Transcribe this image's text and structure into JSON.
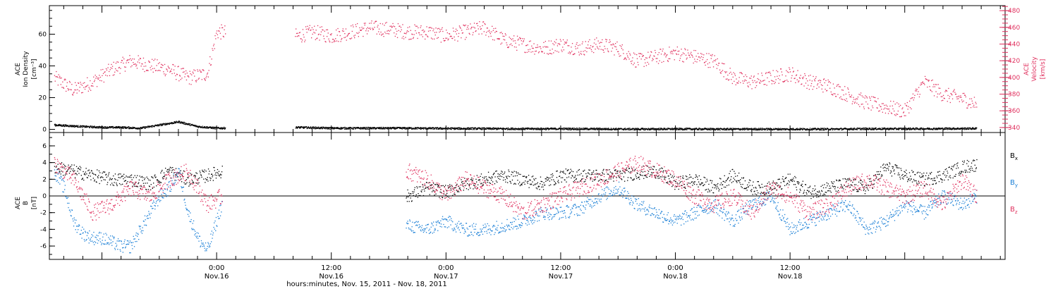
{
  "colors": {
    "density": "#000000",
    "velocity": "#e0305e",
    "bx": "#000000",
    "by": "#1a7fd6",
    "bz": "#e0305e",
    "frame": "#000000"
  },
  "chart_data": [
    {
      "type": "scatter",
      "panel": "top",
      "left_axis": {
        "label_lines": [
          "ACE",
          "Ion Density",
          "[cm⁻³]"
        ],
        "ylim": [
          -2,
          78
        ],
        "ticks": [
          "0",
          "20",
          "40",
          "60"
        ]
      },
      "right_axis": {
        "label_lines": [
          "ACE",
          "Velocity",
          "[km/s]"
        ],
        "ylim": [
          334,
          486
        ],
        "ticks": [
          "340",
          "360",
          "380",
          "400",
          "420",
          "440",
          "460",
          "480"
        ]
      },
      "x_range_hours": [
        -17.5,
        82.5
      ],
      "series": [
        {
          "axis": "left",
          "gaps": [
            [
              0.9,
              8.2
            ]
          ],
          "x": [
            -17,
            -14,
            -12,
            -10,
            -8,
            -6,
            -4,
            -2,
            0,
            8.5,
            12,
            16,
            20,
            24,
            28,
            32,
            36,
            40,
            44,
            48,
            52,
            56,
            60,
            64,
            68,
            72,
            76,
            79.5
          ],
          "values": [
            3,
            2,
            1.5,
            1.5,
            1,
            3,
            5,
            2,
            1,
            1.5,
            1,
            1,
            1,
            0.8,
            0.7,
            0.6,
            0.6,
            0.5,
            0.4,
            0.5,
            0.4,
            0.4,
            0.4,
            0.4,
            0.6,
            0.6,
            0.7,
            0.8
          ]
        },
        {
          "axis": "right",
          "gaps": [
            [
              0.9,
              8.2
            ]
          ],
          "x": [
            -17,
            -15,
            -13,
            -11,
            -9,
            -7,
            -5,
            -3,
            -1,
            0,
            8.5,
            10,
            12,
            14,
            16,
            18,
            20,
            22,
            24,
            26,
            28,
            30,
            32,
            34,
            36,
            38,
            40,
            42,
            44,
            46,
            48,
            50,
            52,
            54,
            56,
            58,
            60,
            62,
            64,
            66,
            68,
            70,
            72,
            74,
            76,
            78,
            79.5
          ],
          "values": [
            400,
            385,
            395,
            410,
            420,
            415,
            410,
            400,
            405,
            455,
            450,
            455,
            450,
            455,
            460,
            458,
            455,
            455,
            450,
            455,
            460,
            445,
            440,
            435,
            440,
            435,
            440,
            435,
            420,
            425,
            430,
            425,
            420,
            400,
            395,
            400,
            405,
            395,
            390,
            380,
            370,
            365,
            360,
            395,
            380,
            375,
            368
          ]
        }
      ]
    },
    {
      "type": "scatter",
      "panel": "bottom",
      "y_axis": {
        "label_lines": [
          "ACE",
          "B",
          "[nT]"
        ],
        "ylim": [
          -7.6,
          7.6
        ],
        "ticks": [
          "6",
          "4",
          "2",
          "0",
          "-2",
          "-4",
          "-6"
        ]
      },
      "zero_line": true,
      "x_range_hours": [
        -17.5,
        82.5
      ],
      "series": [
        {
          "name": "B",
          "subscript": "x",
          "gaps": [
            [
              0.6,
              19.8
            ]
          ],
          "x": [
            -17,
            -15,
            -13,
            -11,
            -9,
            -7,
            -5,
            -3,
            -1,
            0.5,
            20,
            22,
            24,
            26,
            28,
            30,
            32,
            34,
            36,
            38,
            40,
            42,
            44,
            46,
            48,
            50,
            52,
            54,
            56,
            58,
            60,
            62,
            64,
            66,
            68,
            70,
            72,
            74,
            76,
            78,
            79.5
          ],
          "values": [
            3.5,
            3,
            2.5,
            2,
            2,
            1.5,
            3,
            2,
            2.5,
            3,
            0,
            1,
            0.5,
            1.5,
            2,
            2.5,
            2,
            1.5,
            2.5,
            2.5,
            2.5,
            2.5,
            2.8,
            3,
            1.5,
            2,
            1,
            2.5,
            1,
            1,
            2,
            0.5,
            1,
            1.5,
            1,
            3.5,
            2.5,
            2,
            2.5,
            3.5,
            3.8
          ]
        },
        {
          "name": "B",
          "subscript": "y",
          "gaps": [
            [
              0.6,
              19.8
            ]
          ],
          "x": [
            -17,
            -16,
            -15,
            -14,
            -13,
            -12,
            -11,
            -10,
            -9,
            -8,
            -7,
            -6,
            -5,
            -4,
            -3,
            -2,
            -1,
            0.5,
            20,
            22,
            24,
            26,
            28,
            30,
            32,
            34,
            36,
            38,
            40,
            42,
            44,
            46,
            48,
            50,
            52,
            54,
            56,
            58,
            60,
            62,
            64,
            66,
            68,
            70,
            72,
            74,
            76,
            78,
            79.5
          ],
          "values": [
            3,
            1,
            -3,
            -4.5,
            -5,
            -5,
            -5.5,
            -6,
            -6,
            -4,
            -2,
            0,
            1,
            3,
            -2,
            -5,
            -6.5,
            -1,
            -3.5,
            -4,
            -3,
            -4,
            -4,
            -3.5,
            -3,
            -2,
            -2,
            -1.5,
            0,
            1,
            -1,
            -2,
            -3,
            -2,
            -1,
            -3,
            -1,
            0,
            -4,
            -3,
            -2,
            -1,
            -4,
            -3,
            -1,
            -2,
            0,
            -1,
            0
          ]
        },
        {
          "name": "B",
          "subscript": "z",
          "gaps": [
            [
              0.6,
              19.8
            ]
          ],
          "x": [
            -17,
            -15,
            -13,
            -11,
            -9,
            -7,
            -5,
            -3,
            -1,
            0.5,
            20,
            22,
            24,
            26,
            28,
            30,
            32,
            34,
            36,
            38,
            40,
            42,
            44,
            46,
            48,
            50,
            52,
            54,
            56,
            58,
            60,
            62,
            64,
            66,
            68,
            70,
            72,
            74,
            76,
            78,
            79.5
          ],
          "values": [
            4,
            2,
            -2,
            -1,
            1,
            0,
            2,
            3,
            -1,
            0,
            3,
            2,
            0,
            2,
            1,
            0,
            -2,
            -1,
            0,
            1,
            2,
            3,
            4,
            3,
            2,
            0,
            -1,
            0,
            -2,
            1,
            0,
            -2,
            -1,
            1,
            2,
            1,
            0,
            1,
            -1,
            2,
            0
          ]
        }
      ]
    }
  ],
  "x_axis": {
    "major_ticks": [
      {
        "hour": 0,
        "time": "0:00",
        "date": "Nov.16"
      },
      {
        "hour": 12,
        "time": "12:00",
        "date": "Nov.16"
      },
      {
        "hour": 24,
        "time": "0:00",
        "date": "Nov.17"
      },
      {
        "hour": 36,
        "time": "12:00",
        "date": "Nov.17"
      },
      {
        "hour": 48,
        "time": "0:00",
        "date": "Nov.18"
      },
      {
        "hour": 60,
        "time": "12:00",
        "date": "Nov.18"
      }
    ],
    "minor_step_hours": 2,
    "caption": "hours:minutes, Nov. 15, 2011 - Nov. 18, 2011"
  }
}
